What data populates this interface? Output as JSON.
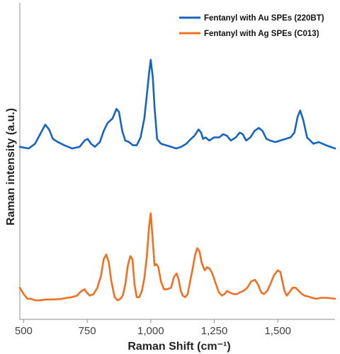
{
  "chart_data": {
    "type": "line",
    "xlabel": "Raman Shift (cm⁻¹)",
    "ylabel": "Raman intensity (a.u.)",
    "xlim": [
      485,
      1725
    ],
    "ylim": [
      0,
      1.0
    ],
    "xticks": [
      500,
      750,
      1000,
      1250,
      1500
    ],
    "xtick_labels": [
      "500",
      "750",
      "1,000",
      "1,250",
      "1,500"
    ],
    "y_tick_labels_shown": false,
    "grid": false,
    "legend_position": "top-right",
    "series": [
      {
        "name": "Fentanyl with Au SPEs (220BT)",
        "color": "#1565C0",
        "x": [
          485,
          520,
          545,
          565,
          585,
          600,
          615,
          635,
          660,
          690,
          720,
          740,
          752,
          765,
          780,
          800,
          815,
          830,
          850,
          865,
          875,
          888,
          900,
          915,
          930,
          945,
          960,
          975,
          985,
          993,
          1000,
          1008,
          1015,
          1025,
          1040,
          1060,
          1080,
          1100,
          1120,
          1140,
          1158,
          1172,
          1188,
          1198,
          1206,
          1215,
          1230,
          1250,
          1270,
          1285,
          1300,
          1315,
          1335,
          1350,
          1362,
          1375,
          1392,
          1408,
          1425,
          1440,
          1455,
          1470,
          1490,
          1510,
          1530,
          1550,
          1565,
          1578,
          1588,
          1600,
          1615,
          1640,
          1660,
          1690,
          1725
        ],
        "y": [
          0.545,
          0.54,
          0.555,
          0.585,
          0.615,
          0.6,
          0.57,
          0.56,
          0.55,
          0.54,
          0.545,
          0.565,
          0.57,
          0.555,
          0.545,
          0.56,
          0.595,
          0.62,
          0.635,
          0.665,
          0.655,
          0.595,
          0.565,
          0.56,
          0.55,
          0.55,
          0.575,
          0.635,
          0.71,
          0.775,
          0.82,
          0.765,
          0.67,
          0.57,
          0.555,
          0.55,
          0.545,
          0.54,
          0.545,
          0.555,
          0.57,
          0.58,
          0.6,
          0.59,
          0.57,
          0.575,
          0.565,
          0.575,
          0.575,
          0.585,
          0.58,
          0.565,
          0.575,
          0.59,
          0.585,
          0.565,
          0.575,
          0.595,
          0.605,
          0.595,
          0.57,
          0.565,
          0.56,
          0.565,
          0.57,
          0.575,
          0.59,
          0.64,
          0.66,
          0.63,
          0.575,
          0.555,
          0.56,
          0.55,
          0.54
        ]
      },
      {
        "name": "Fentanyl with Ag SPEs (C013)",
        "color": "#F07021",
        "x": [
          485,
          500,
          515,
          530,
          545,
          560,
          590,
          620,
          650,
          670,
          690,
          710,
          728,
          740,
          748,
          760,
          775,
          790,
          805,
          815,
          825,
          835,
          845,
          858,
          870,
          880,
          890,
          900,
          910,
          920,
          928,
          936,
          945,
          955,
          965,
          975,
          985,
          993,
          1000,
          1007,
          1015,
          1022,
          1030,
          1040,
          1052,
          1065,
          1080,
          1092,
          1102,
          1110,
          1118,
          1126,
          1135,
          1145,
          1155,
          1165,
          1175,
          1183,
          1192,
          1200,
          1212,
          1222,
          1232,
          1242,
          1255,
          1268,
          1280,
          1290,
          1300,
          1310,
          1325,
          1340,
          1350,
          1365,
          1380,
          1395,
          1410,
          1422,
          1435,
          1445,
          1458,
          1470,
          1485,
          1500,
          1510,
          1518,
          1526,
          1535,
          1545,
          1558,
          1570,
          1582,
          1595,
          1605,
          1620,
          1635,
          1650,
          1670,
          1695,
          1725
        ],
        "y": [
          0.1,
          0.08,
          0.065,
          0.065,
          0.06,
          0.06,
          0.063,
          0.063,
          0.065,
          0.068,
          0.07,
          0.075,
          0.09,
          0.095,
          0.085,
          0.075,
          0.08,
          0.1,
          0.14,
          0.19,
          0.205,
          0.18,
          0.12,
          0.07,
          0.06,
          0.065,
          0.075,
          0.11,
          0.17,
          0.2,
          0.19,
          0.11,
          0.07,
          0.07,
          0.09,
          0.13,
          0.2,
          0.29,
          0.335,
          0.26,
          0.17,
          0.175,
          0.165,
          0.12,
          0.095,
          0.095,
          0.1,
          0.135,
          0.145,
          0.125,
          0.09,
          0.075,
          0.07,
          0.08,
          0.12,
          0.16,
          0.205,
          0.225,
          0.215,
          0.18,
          0.155,
          0.165,
          0.16,
          0.145,
          0.115,
          0.085,
          0.075,
          0.08,
          0.09,
          0.085,
          0.08,
          0.08,
          0.085,
          0.09,
          0.1,
          0.12,
          0.125,
          0.11,
          0.085,
          0.08,
          0.09,
          0.11,
          0.14,
          0.155,
          0.15,
          0.12,
          0.09,
          0.075,
          0.085,
          0.1,
          0.1,
          0.09,
          0.08,
          0.075,
          0.072,
          0.068,
          0.065,
          0.068,
          0.068,
          0.065
        ]
      }
    ]
  }
}
